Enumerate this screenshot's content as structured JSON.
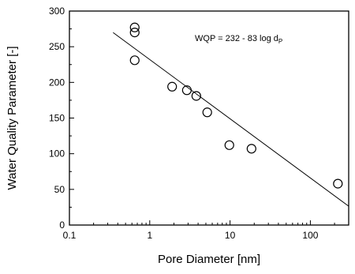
{
  "chart_data": {
    "type": "scatter",
    "title": "",
    "xlabel": "Pore Diameter [nm]",
    "ylabel": "Water Quality Parameter [-]",
    "xscale": "log",
    "xlim": [
      0.1,
      300
    ],
    "ylim": [
      0,
      300
    ],
    "x_ticks": [
      0.1,
      1,
      10,
      100
    ],
    "x_tick_labels": [
      "0.1",
      "1",
      "10",
      "100"
    ],
    "y_ticks": [
      0,
      50,
      100,
      150,
      200,
      250,
      300
    ],
    "y_tick_labels": [
      "0",
      "50",
      "100",
      "150",
      "200",
      "250",
      "300"
    ],
    "grid": false,
    "legend": "none",
    "series": [
      {
        "marker": "open-circle",
        "x": [
          0.65,
          0.65,
          0.65,
          1.9,
          2.9,
          3.8,
          5.2,
          9.8,
          18.5,
          220
        ],
        "y": [
          277,
          270,
          231,
          194,
          189,
          181,
          158,
          112,
          107,
          58
        ]
      }
    ],
    "fit_line": {
      "intercept": 232,
      "slope": -83,
      "x_range": [
        0.35,
        300
      ]
    },
    "annotation": {
      "prefix": "WQP = 232 - 83 log d",
      "subscript": "P",
      "position": "top-right"
    }
  }
}
